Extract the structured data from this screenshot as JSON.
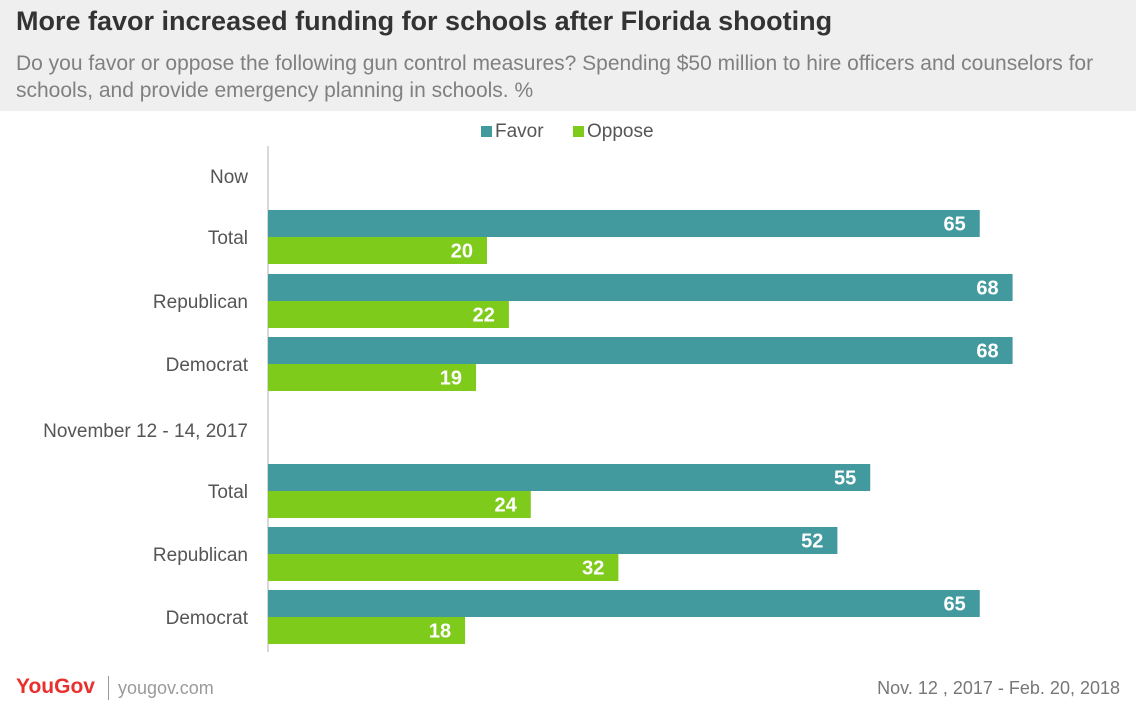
{
  "header": {
    "title": "More favor increased  funding for schools after Florida shooting",
    "subtitle": "Do you favor or oppose the following gun control measures? Spending $50 million to hire officers and counselors for schools, and provide emergency planning in schools. %"
  },
  "footer": {
    "logo": "YouGov",
    "site": "yougov.com",
    "date_range": "Nov. 12 , 2017 - Feb. 20, 2018"
  },
  "colors": {
    "favor": "#439a9e",
    "oppose": "#7fcb1c"
  },
  "chart_data": {
    "type": "bar",
    "orientation": "horizontal",
    "legend_position": "top",
    "xlim": [
      0,
      100
    ],
    "grid": false,
    "groups": [
      {
        "label": "Now",
        "categories": [
          "Total",
          "Republican",
          "Democrat"
        ]
      },
      {
        "label": "November 12 - 14, 2017",
        "categories": [
          "Total",
          "Republican",
          "Democrat"
        ]
      }
    ],
    "series": [
      {
        "name": "Favor",
        "color": "#439a9e",
        "values": [
          65,
          68,
          68,
          55,
          52,
          65
        ]
      },
      {
        "name": "Oppose",
        "color": "#7fcb1c",
        "values": [
          20,
          22,
          19,
          24,
          32,
          18
        ]
      }
    ]
  }
}
